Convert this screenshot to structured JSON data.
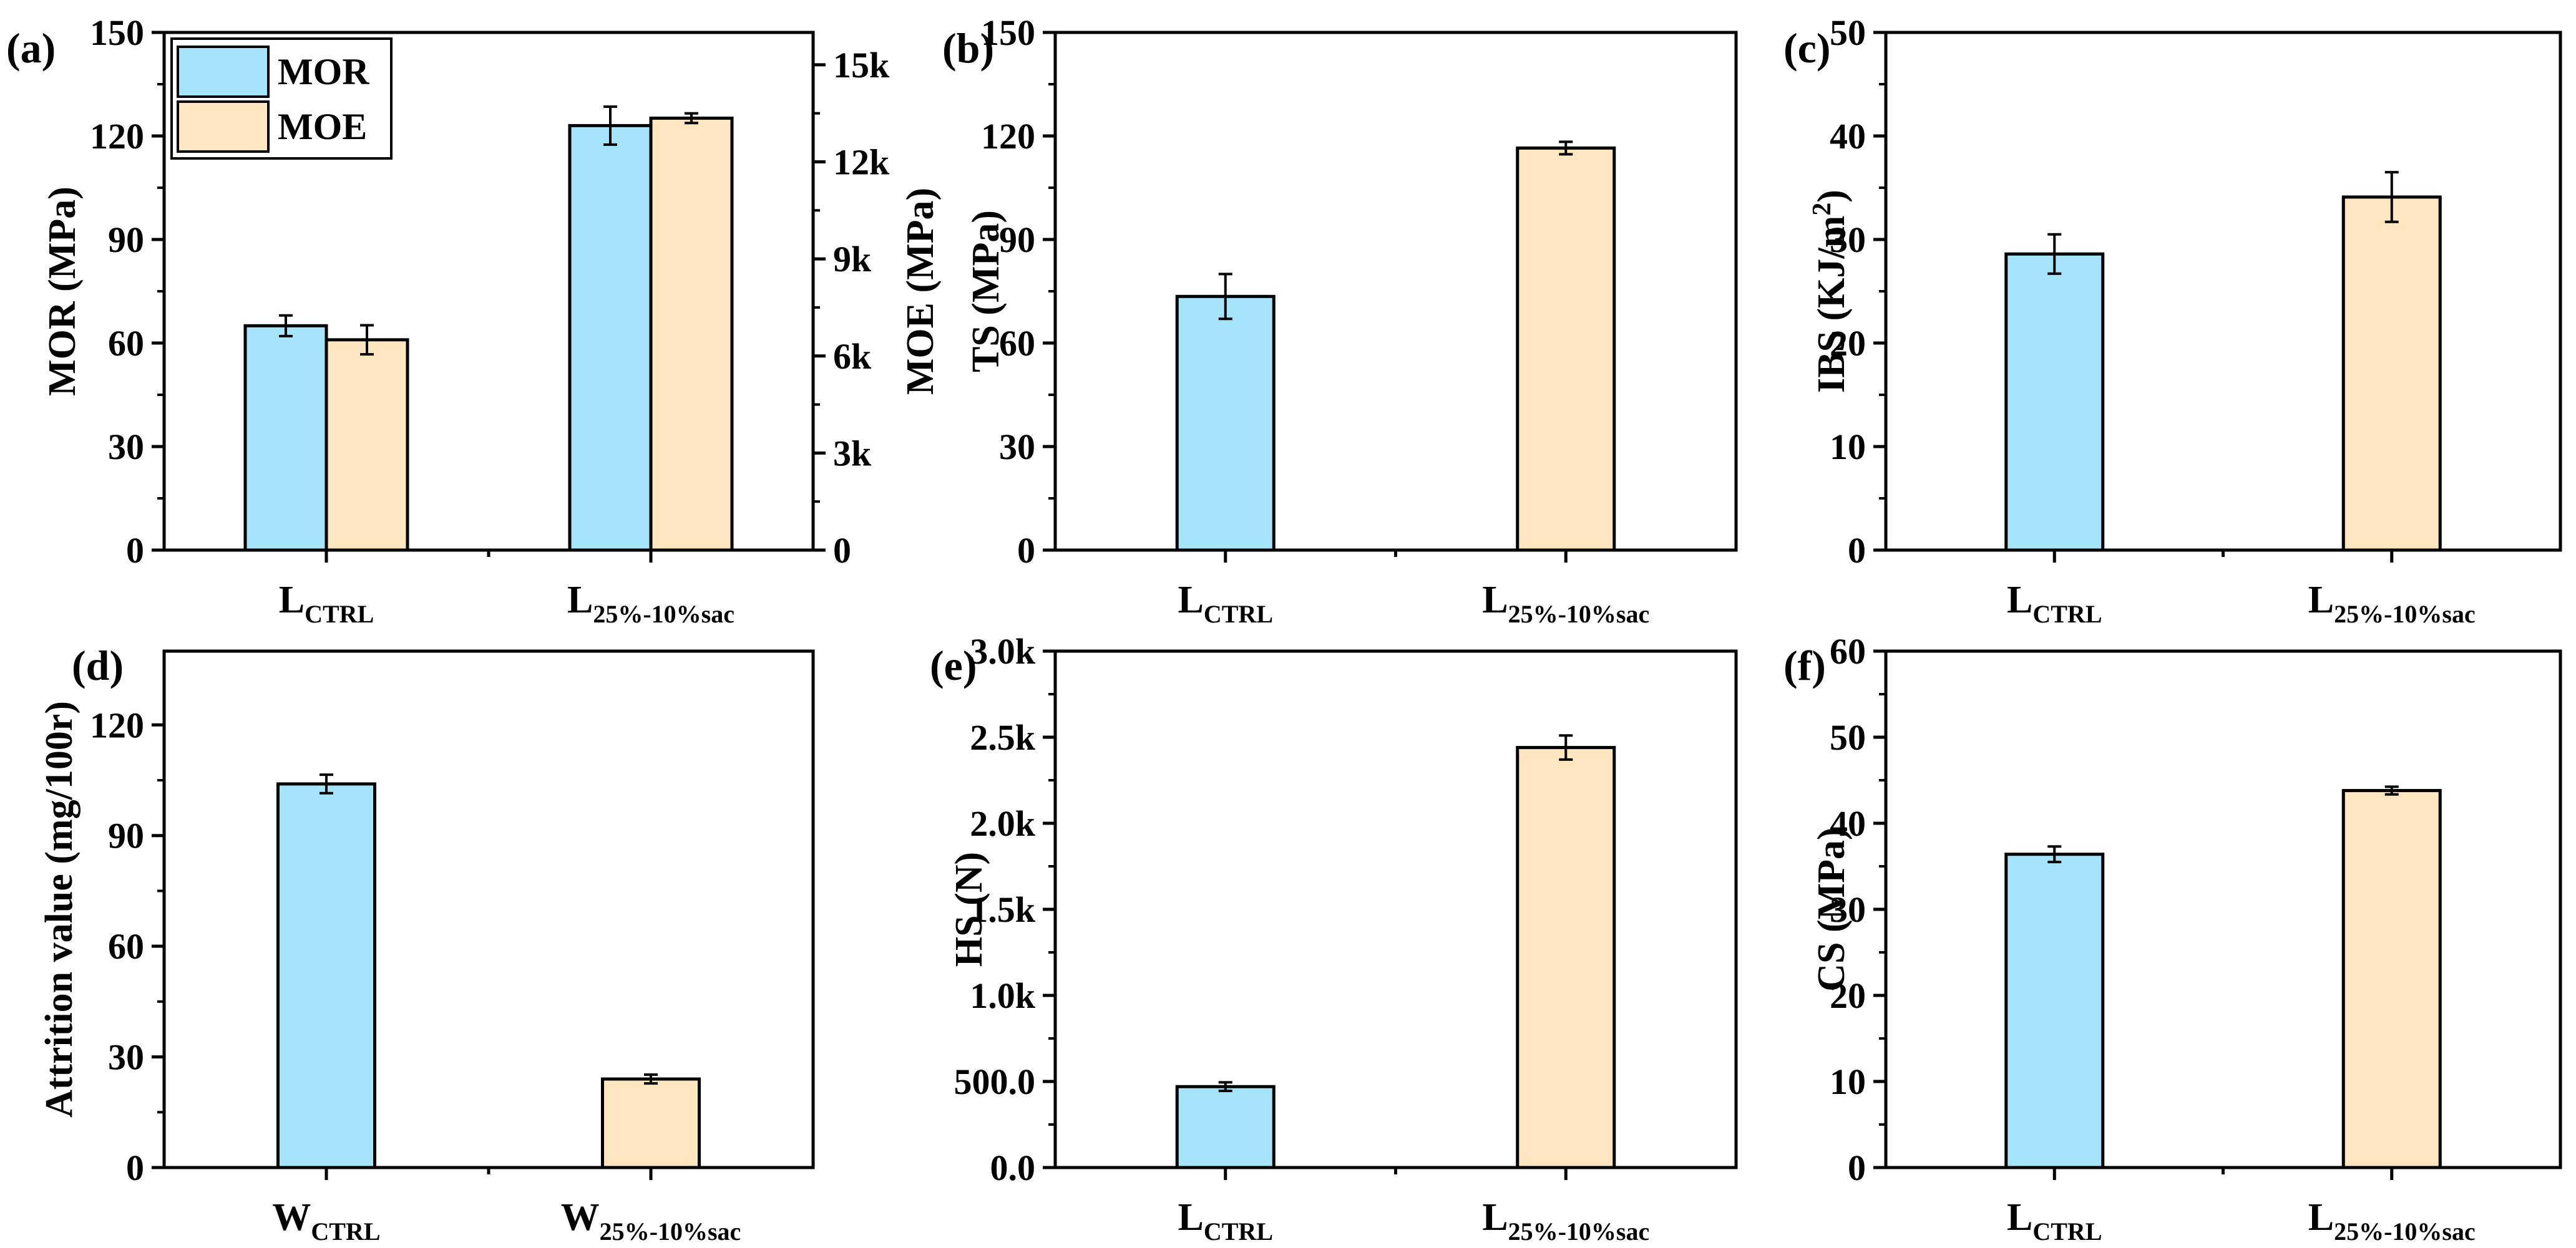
{
  "colors": {
    "blue": "#a6e4fc",
    "tan": "#fde6c0",
    "stroke": "#000000",
    "background": "#ffffff"
  },
  "legend": {
    "items": [
      {
        "label": "MOR",
        "color": "#a6e4fc"
      },
      {
        "label": "MOE",
        "color": "#fde6c0"
      }
    ]
  },
  "chart_data": [
    {
      "id": "a",
      "panel_label": "(a)",
      "type": "bar",
      "categories": [
        {
          "main": "L",
          "sub": "CTRL"
        },
        {
          "main": "L",
          "sub": "25%-10%sac"
        }
      ],
      "ylabel": "MOR (MPa)",
      "ylim": [
        0,
        150
      ],
      "yticks": [
        0,
        30,
        60,
        90,
        120,
        150
      ],
      "ytick_labels": [
        "0",
        "30",
        "60",
        "90",
        "120",
        "150"
      ],
      "y2label": "MOE (MPa)",
      "y2lim": [
        0,
        16000
      ],
      "y2ticks": [
        0,
        3000,
        6000,
        9000,
        12000,
        15000
      ],
      "y2tick_labels": [
        "0",
        "3k",
        "6k",
        "9k",
        "12k",
        "15k"
      ],
      "legend_position": "top-left",
      "series": [
        {
          "name": "MOR",
          "axis": "left",
          "color": "#a6e4fc",
          "values": [
            65,
            123
          ],
          "errors": [
            3,
            5.5
          ]
        },
        {
          "name": "MOE",
          "axis": "right",
          "color": "#fde6c0",
          "values": [
            6500,
            13350
          ],
          "errors": [
            450,
            150
          ]
        }
      ]
    },
    {
      "id": "b",
      "panel_label": "(b)",
      "type": "bar",
      "categories": [
        {
          "main": "L",
          "sub": "CTRL"
        },
        {
          "main": "L",
          "sub": "25%-10%sac"
        }
      ],
      "ylabel": "TS (MPa)",
      "ylim": [
        0,
        150
      ],
      "yticks": [
        0,
        30,
        60,
        90,
        120,
        150
      ],
      "ytick_labels": [
        "0",
        "30",
        "60",
        "90",
        "120",
        "150"
      ],
      "values": [
        73.5,
        116.5
      ],
      "errors": [
        6.5,
        1.8
      ],
      "colors": [
        "#a6e4fc",
        "#fde6c0"
      ]
    },
    {
      "id": "c",
      "panel_label": "(c)",
      "type": "bar",
      "categories": [
        {
          "main": "L",
          "sub": "CTRL"
        },
        {
          "main": "L",
          "sub": "25%-10%sac"
        }
      ],
      "ylabel": "IBS (KJ/m",
      "ylabel_sup": "2",
      "ylabel_end": ")",
      "ylim": [
        0,
        50
      ],
      "yticks": [
        0,
        10,
        20,
        30,
        40,
        50
      ],
      "ytick_labels": [
        "0",
        "10",
        "20",
        "30",
        "40",
        "50"
      ],
      "values": [
        28.6,
        34.1
      ],
      "errors": [
        1.9,
        2.4
      ],
      "colors": [
        "#a6e4fc",
        "#fde6c0"
      ]
    },
    {
      "id": "d",
      "panel_label": "(d)",
      "type": "bar",
      "categories": [
        {
          "main": "W",
          "sub": "CTRL"
        },
        {
          "main": "W",
          "sub": "25%-10%sac"
        }
      ],
      "ylabel": "Attrition value (mg/100r)",
      "ylim": [
        0,
        140
      ],
      "yticks": [
        0,
        30,
        60,
        90,
        120
      ],
      "ytick_labels": [
        "0",
        "30",
        "60",
        "90",
        "120"
      ],
      "values": [
        104,
        24
      ],
      "errors": [
        2.5,
        1.2
      ],
      "colors": [
        "#a6e4fc",
        "#fde6c0"
      ]
    },
    {
      "id": "e",
      "panel_label": "(e)",
      "type": "bar",
      "categories": [
        {
          "main": "L",
          "sub": "CTRL"
        },
        {
          "main": "L",
          "sub": "25%-10%sac"
        }
      ],
      "ylabel": "HS (N)",
      "ylim": [
        0,
        3000
      ],
      "yticks": [
        0,
        500,
        1000,
        1500,
        2000,
        2500,
        3000
      ],
      "ytick_labels": [
        "0.0",
        "500.0",
        "1.0k",
        "1.5k",
        "2.0k",
        "2.5k",
        "3.0k"
      ],
      "values": [
        470,
        2440
      ],
      "errors": [
        25,
        70
      ],
      "colors": [
        "#a6e4fc",
        "#fde6c0"
      ]
    },
    {
      "id": "f",
      "panel_label": "(f)",
      "type": "bar",
      "categories": [
        {
          "main": "L",
          "sub": "CTRL"
        },
        {
          "main": "L",
          "sub": "25%-10%sac"
        }
      ],
      "ylabel": "CS (MPa)",
      "ylim": [
        0,
        60
      ],
      "yticks": [
        0,
        10,
        20,
        30,
        40,
        50,
        60
      ],
      "ytick_labels": [
        "0",
        "10",
        "20",
        "30",
        "40",
        "50",
        "60"
      ],
      "values": [
        36.4,
        43.8
      ],
      "errors": [
        0.9,
        0.45
      ],
      "colors": [
        "#a6e4fc",
        "#fde6c0"
      ]
    }
  ]
}
